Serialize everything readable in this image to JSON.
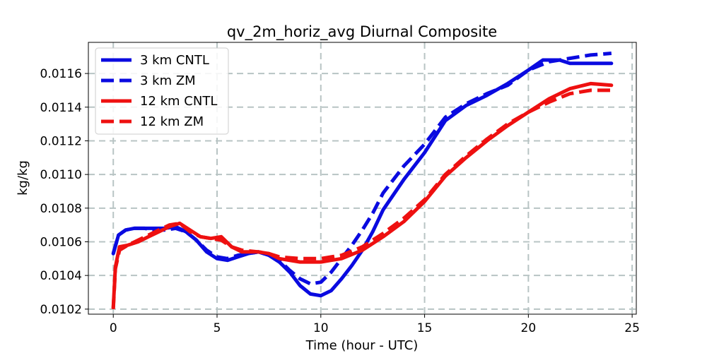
{
  "chart_data": {
    "type": "line",
    "title": "qv_2m_horiz_avg Diurnal Composite",
    "xlabel": "Time (hour - UTC)",
    "ylabel": "kg/kg",
    "xlim": [
      -1.2,
      25.2
    ],
    "ylim": [
      0.01017,
      0.011785
    ],
    "xticks": [
      0,
      5,
      10,
      15,
      20,
      25
    ],
    "yticks": [
      0.0102,
      0.0104,
      0.0106,
      0.0108,
      0.011,
      0.0112,
      0.0114,
      0.0116
    ],
    "ytick_labels": [
      "0.0102",
      "0.0104",
      "0.0106",
      "0.0108",
      "0.0110",
      "0.0112",
      "0.0114",
      "0.0116"
    ],
    "grid": true,
    "legend_position": "upper-left",
    "series": [
      {
        "name": "3 km CNTL",
        "color": "#0a0ae0",
        "dash": "solid",
        "points": [
          [
            0,
            0.01053
          ],
          [
            0.25,
            0.01064
          ],
          [
            0.6,
            0.01067
          ],
          [
            1,
            0.01068
          ],
          [
            1.5,
            0.01068
          ],
          [
            2,
            0.01068
          ],
          [
            2.5,
            0.01068
          ],
          [
            3,
            0.01069
          ],
          [
            3.5,
            0.01066
          ],
          [
            4,
            0.01061
          ],
          [
            4.5,
            0.01054
          ],
          [
            5,
            0.0105
          ],
          [
            5.5,
            0.01049
          ],
          [
            6,
            0.01051
          ],
          [
            6.5,
            0.01053
          ],
          [
            7,
            0.01054
          ],
          [
            7.5,
            0.01052
          ],
          [
            8,
            0.01048
          ],
          [
            8.5,
            0.01042
          ],
          [
            9,
            0.01034
          ],
          [
            9.5,
            0.01029
          ],
          [
            10,
            0.01028
          ],
          [
            10.5,
            0.01031
          ],
          [
            11,
            0.01038
          ],
          [
            11.5,
            0.01046
          ],
          [
            12,
            0.01055
          ],
          [
            12.5,
            0.01066
          ],
          [
            13,
            0.01079
          ],
          [
            14,
            0.01097
          ],
          [
            15,
            0.01113
          ],
          [
            16,
            0.01132
          ],
          [
            17,
            0.01141
          ],
          [
            18,
            0.01147
          ],
          [
            19,
            0.01154
          ],
          [
            20,
            0.01162
          ],
          [
            20.7,
            0.01168
          ],
          [
            21.5,
            0.01168
          ],
          [
            22,
            0.01166
          ],
          [
            23,
            0.01166
          ],
          [
            24,
            0.01166
          ]
        ]
      },
      {
        "name": "3 km ZM",
        "color": "#0a0ae0",
        "dash": "dashed",
        "points": [
          [
            0,
            0.01053
          ],
          [
            0.25,
            0.01064
          ],
          [
            0.6,
            0.01067
          ],
          [
            1,
            0.01068
          ],
          [
            1.5,
            0.01068
          ],
          [
            2,
            0.01067
          ],
          [
            2.5,
            0.01067
          ],
          [
            3,
            0.01068
          ],
          [
            3.5,
            0.01066
          ],
          [
            4,
            0.01061
          ],
          [
            4.5,
            0.01055
          ],
          [
            5,
            0.01051
          ],
          [
            5.5,
            0.0105
          ],
          [
            6,
            0.01052
          ],
          [
            6.5,
            0.01053
          ],
          [
            7,
            0.01054
          ],
          [
            7.5,
            0.01052
          ],
          [
            8,
            0.01049
          ],
          [
            8.5,
            0.01043
          ],
          [
            9,
            0.01038
          ],
          [
            9.5,
            0.01035
          ],
          [
            10,
            0.01036
          ],
          [
            10.5,
            0.01042
          ],
          [
            11,
            0.0105
          ],
          [
            11.5,
            0.01058
          ],
          [
            12,
            0.01067
          ],
          [
            12.5,
            0.01077
          ],
          [
            13,
            0.01089
          ],
          [
            14,
            0.01105
          ],
          [
            15,
            0.01118
          ],
          [
            16,
            0.01134
          ],
          [
            17,
            0.01142
          ],
          [
            18,
            0.01148
          ],
          [
            19,
            0.01153
          ],
          [
            20,
            0.01162
          ],
          [
            21,
            0.01167
          ],
          [
            22,
            0.01169
          ],
          [
            23,
            0.01171
          ],
          [
            24,
            0.01172
          ]
        ]
      },
      {
        "name": "12 km CNTL",
        "color": "#ee1010",
        "dash": "solid",
        "points": [
          [
            0,
            0.01021
          ],
          [
            0.1,
            0.01045
          ],
          [
            0.3,
            0.01057
          ],
          [
            0.7,
            0.01058
          ],
          [
            1.2,
            0.0106
          ],
          [
            1.7,
            0.01063
          ],
          [
            2.2,
            0.01066
          ],
          [
            2.7,
            0.01069
          ],
          [
            3.2,
            0.01071
          ],
          [
            3.7,
            0.01067
          ],
          [
            4.2,
            0.01063
          ],
          [
            4.7,
            0.01062
          ],
          [
            5.2,
            0.01063
          ],
          [
            5.7,
            0.01057
          ],
          [
            6.2,
            0.01054
          ],
          [
            7,
            0.01054
          ],
          [
            7.5,
            0.01053
          ],
          [
            8,
            0.0105
          ],
          [
            9,
            0.01048
          ],
          [
            10,
            0.01048
          ],
          [
            10.5,
            0.01049
          ],
          [
            11,
            0.0105
          ],
          [
            12,
            0.01055
          ],
          [
            13,
            0.01063
          ],
          [
            14,
            0.01072
          ],
          [
            15,
            0.01084
          ],
          [
            16,
            0.01099
          ],
          [
            17,
            0.0111
          ],
          [
            18,
            0.0112
          ],
          [
            19,
            0.01129
          ],
          [
            20,
            0.01137
          ],
          [
            21,
            0.01145
          ],
          [
            22,
            0.01151
          ],
          [
            23,
            0.01154
          ],
          [
            24,
            0.01153
          ]
        ]
      },
      {
        "name": "12 km ZM",
        "color": "#ee1010",
        "dash": "dashed",
        "points": [
          [
            0,
            0.0102
          ],
          [
            0.1,
            0.01044
          ],
          [
            0.3,
            0.01055
          ],
          [
            0.7,
            0.01058
          ],
          [
            1.2,
            0.01061
          ],
          [
            1.7,
            0.01064
          ],
          [
            2.2,
            0.01067
          ],
          [
            2.7,
            0.0107
          ],
          [
            3.2,
            0.01071
          ],
          [
            3.7,
            0.01066
          ],
          [
            4.2,
            0.01063
          ],
          [
            4.7,
            0.01062
          ],
          [
            5.2,
            0.01061
          ],
          [
            5.7,
            0.01057
          ],
          [
            6.2,
            0.01055
          ],
          [
            7,
            0.01054
          ],
          [
            7.5,
            0.01053
          ],
          [
            8,
            0.01051
          ],
          [
            9,
            0.0105
          ],
          [
            10,
            0.0105
          ],
          [
            10.5,
            0.01051
          ],
          [
            11,
            0.01052
          ],
          [
            12,
            0.01057
          ],
          [
            13,
            0.01065
          ],
          [
            14,
            0.01074
          ],
          [
            15,
            0.01085
          ],
          [
            16,
            0.011
          ],
          [
            17,
            0.01111
          ],
          [
            18,
            0.01121
          ],
          [
            19,
            0.0113
          ],
          [
            20,
            0.01137
          ],
          [
            21,
            0.01143
          ],
          [
            22,
            0.01148
          ],
          [
            23,
            0.0115
          ],
          [
            24,
            0.0115
          ]
        ]
      }
    ]
  }
}
